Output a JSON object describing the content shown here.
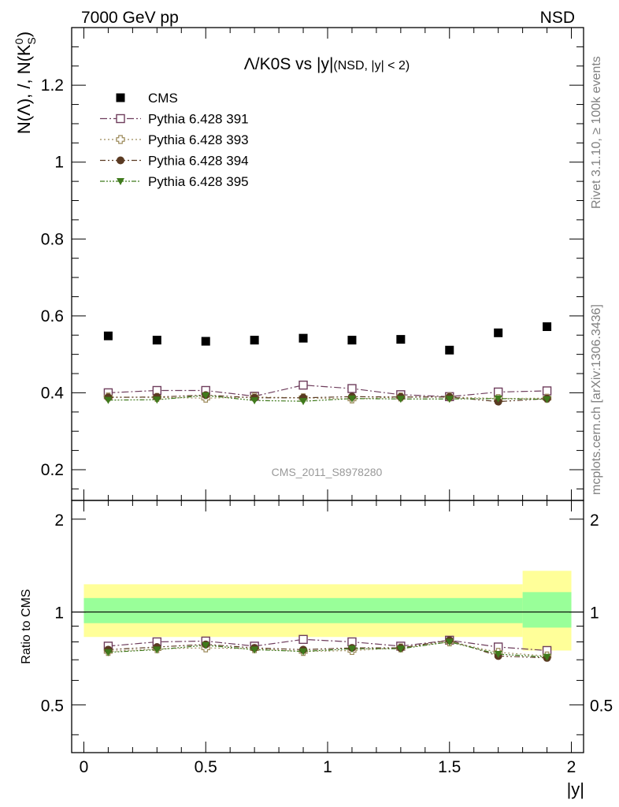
{
  "header": {
    "left": "7000 GeV pp",
    "right": "NSD",
    "title_main": "Λ/K0S vs |y|",
    "title_sub": "(NSD, |y| < 2)",
    "analysis_id": "CMS_2011_S8978280",
    "rivet_note": "Rivet 3.1.10, ≥ 100k events",
    "source_note": "mcplots.cern.ch [arXiv:1306.3436]"
  },
  "colors": {
    "cms": "#000000",
    "py391": "#6e3d5c",
    "py393": "#9c8a5a",
    "py394": "#5a3a22",
    "py395": "#3f7a1c",
    "band_inner": "#99ff99",
    "band_outer": "#ffff99"
  },
  "chart_data": [
    {
      "type": "scatter",
      "ylabel": "N(Λ), /, N(K",
      "ylabel_sup": "0",
      "ylabel_sub": "S",
      "ylabel_end": ")",
      "xlim": [
        -0.05,
        2.05
      ],
      "ylim": [
        0.12,
        1.35
      ],
      "yticks": [
        0.2,
        0.4,
        0.6,
        0.8,
        1,
        1.2
      ],
      "ytick_labels": [
        "0.2",
        "0.4",
        "0.6",
        "0.8",
        "1",
        "1.2"
      ],
      "x": [
        0.1,
        0.3,
        0.5,
        0.7,
        0.9,
        1.1,
        1.3,
        1.5,
        1.7,
        1.9
      ],
      "series": [
        {
          "name": "CMS",
          "marker": "square-filled",
          "color_key": "cms",
          "values": [
            0.548,
            0.537,
            0.534,
            0.537,
            0.542,
            0.537,
            0.539,
            0.511,
            0.556,
            0.572
          ]
        },
        {
          "name": "Pythia 6.428 391",
          "marker": "square-open",
          "line": "dashdot",
          "color_key": "py391",
          "values": [
            0.4,
            0.406,
            0.406,
            0.391,
            0.42,
            0.411,
            0.395,
            0.39,
            0.402,
            0.405
          ]
        },
        {
          "name": "Pythia 6.428 393",
          "marker": "cross-open",
          "line": "dotted",
          "color_key": "py393",
          "values": [
            0.389,
            0.388,
            0.386,
            0.389,
            0.387,
            0.384,
            0.389,
            0.389,
            0.385,
            0.386
          ]
        },
        {
          "name": "Pythia 6.428 394",
          "marker": "circle-filled",
          "line": "dashdotdot",
          "color_key": "py394",
          "values": [
            0.388,
            0.389,
            0.394,
            0.387,
            0.387,
            0.39,
            0.389,
            0.389,
            0.377,
            0.385
          ]
        },
        {
          "name": "Pythia 6.428 395",
          "marker": "triangle-down-filled",
          "line": "dashdotdotdot",
          "color_key": "py395",
          "values": [
            0.381,
            0.382,
            0.393,
            0.38,
            0.378,
            0.385,
            0.384,
            0.384,
            0.385,
            0.383
          ]
        }
      ]
    },
    {
      "type": "line",
      "ylabel": "Ratio to CMS",
      "xlabel": "|y|",
      "xlim": [
        -0.05,
        2.05
      ],
      "ylim": [
        0.35,
        2.3
      ],
      "xticks": [
        0,
        0.5,
        1,
        1.5,
        2
      ],
      "xtick_labels": [
        "0",
        "0.5",
        "1",
        "1.5",
        "2"
      ],
      "yticks": [
        0.5,
        1,
        2
      ],
      "ytick_labels": [
        "0.5",
        "1",
        "2"
      ],
      "band_edges": [
        0.0,
        1.8,
        2.0
      ],
      "band_inner": [
        [
          0.92,
          1.11
        ],
        [
          0.89,
          1.16
        ]
      ],
      "band_outer": [
        [
          0.83,
          1.23
        ],
        [
          0.75,
          1.36
        ]
      ],
      "x": [
        0.1,
        0.3,
        0.5,
        0.7,
        0.9,
        1.1,
        1.3,
        1.5,
        1.7,
        1.9
      ],
      "series": [
        {
          "name": "Pythia 6.428 391",
          "marker": "square-open",
          "line": "dashdot",
          "color_key": "py391",
          "values": [
            0.775,
            0.8,
            0.805,
            0.775,
            0.815,
            0.8,
            0.775,
            0.81,
            0.77,
            0.75
          ]
        },
        {
          "name": "Pythia 6.428 393",
          "marker": "cross-open",
          "line": "dotted",
          "color_key": "py393",
          "values": [
            0.745,
            0.76,
            0.765,
            0.76,
            0.745,
            0.75,
            0.765,
            0.8,
            0.74,
            0.72
          ]
        },
        {
          "name": "Pythia 6.428 394",
          "marker": "circle-filled",
          "line": "dashdotdot",
          "color_key": "py394",
          "values": [
            0.755,
            0.77,
            0.785,
            0.765,
            0.755,
            0.765,
            0.765,
            0.81,
            0.72,
            0.71
          ]
        },
        {
          "name": "Pythia 6.428 395",
          "marker": "triangle-down-filled",
          "line": "dashdotdotdot",
          "color_key": "py395",
          "values": [
            0.74,
            0.755,
            0.78,
            0.755,
            0.745,
            0.76,
            0.76,
            0.8,
            0.73,
            0.715
          ]
        }
      ]
    }
  ]
}
